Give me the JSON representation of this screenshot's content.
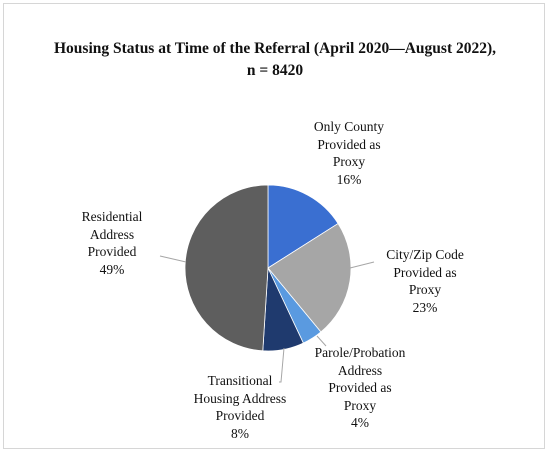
{
  "chart_data": {
    "type": "pie",
    "title_lines": [
      "Housing Status at Time of the Referral (April 2020—August 2022),",
      "n = 8420"
    ],
    "slices": [
      {
        "label_lines": [
          "Only County",
          "Provided as",
          "Proxy"
        ],
        "value": 16,
        "value_label": "16%",
        "color": "#3a6fd1"
      },
      {
        "label_lines": [
          "City/Zip Code",
          "Provided as",
          "Proxy"
        ],
        "value": 23,
        "value_label": "23%",
        "color": "#a6a6a6"
      },
      {
        "label_lines": [
          "Parole/Probation",
          "Address",
          "Provided as",
          "Proxy"
        ],
        "value": 4,
        "value_label": "4%",
        "color": "#5a9ae0"
      },
      {
        "label_lines": [
          "Transitional",
          "Housing Address",
          "Provided"
        ],
        "value": 8,
        "value_label": "8%",
        "color": "#1f3a6e"
      },
      {
        "label_lines": [
          "Residential",
          "Address",
          "Provided"
        ],
        "value": 49,
        "value_label": "49%",
        "color": "#5e5e5e"
      }
    ]
  }
}
